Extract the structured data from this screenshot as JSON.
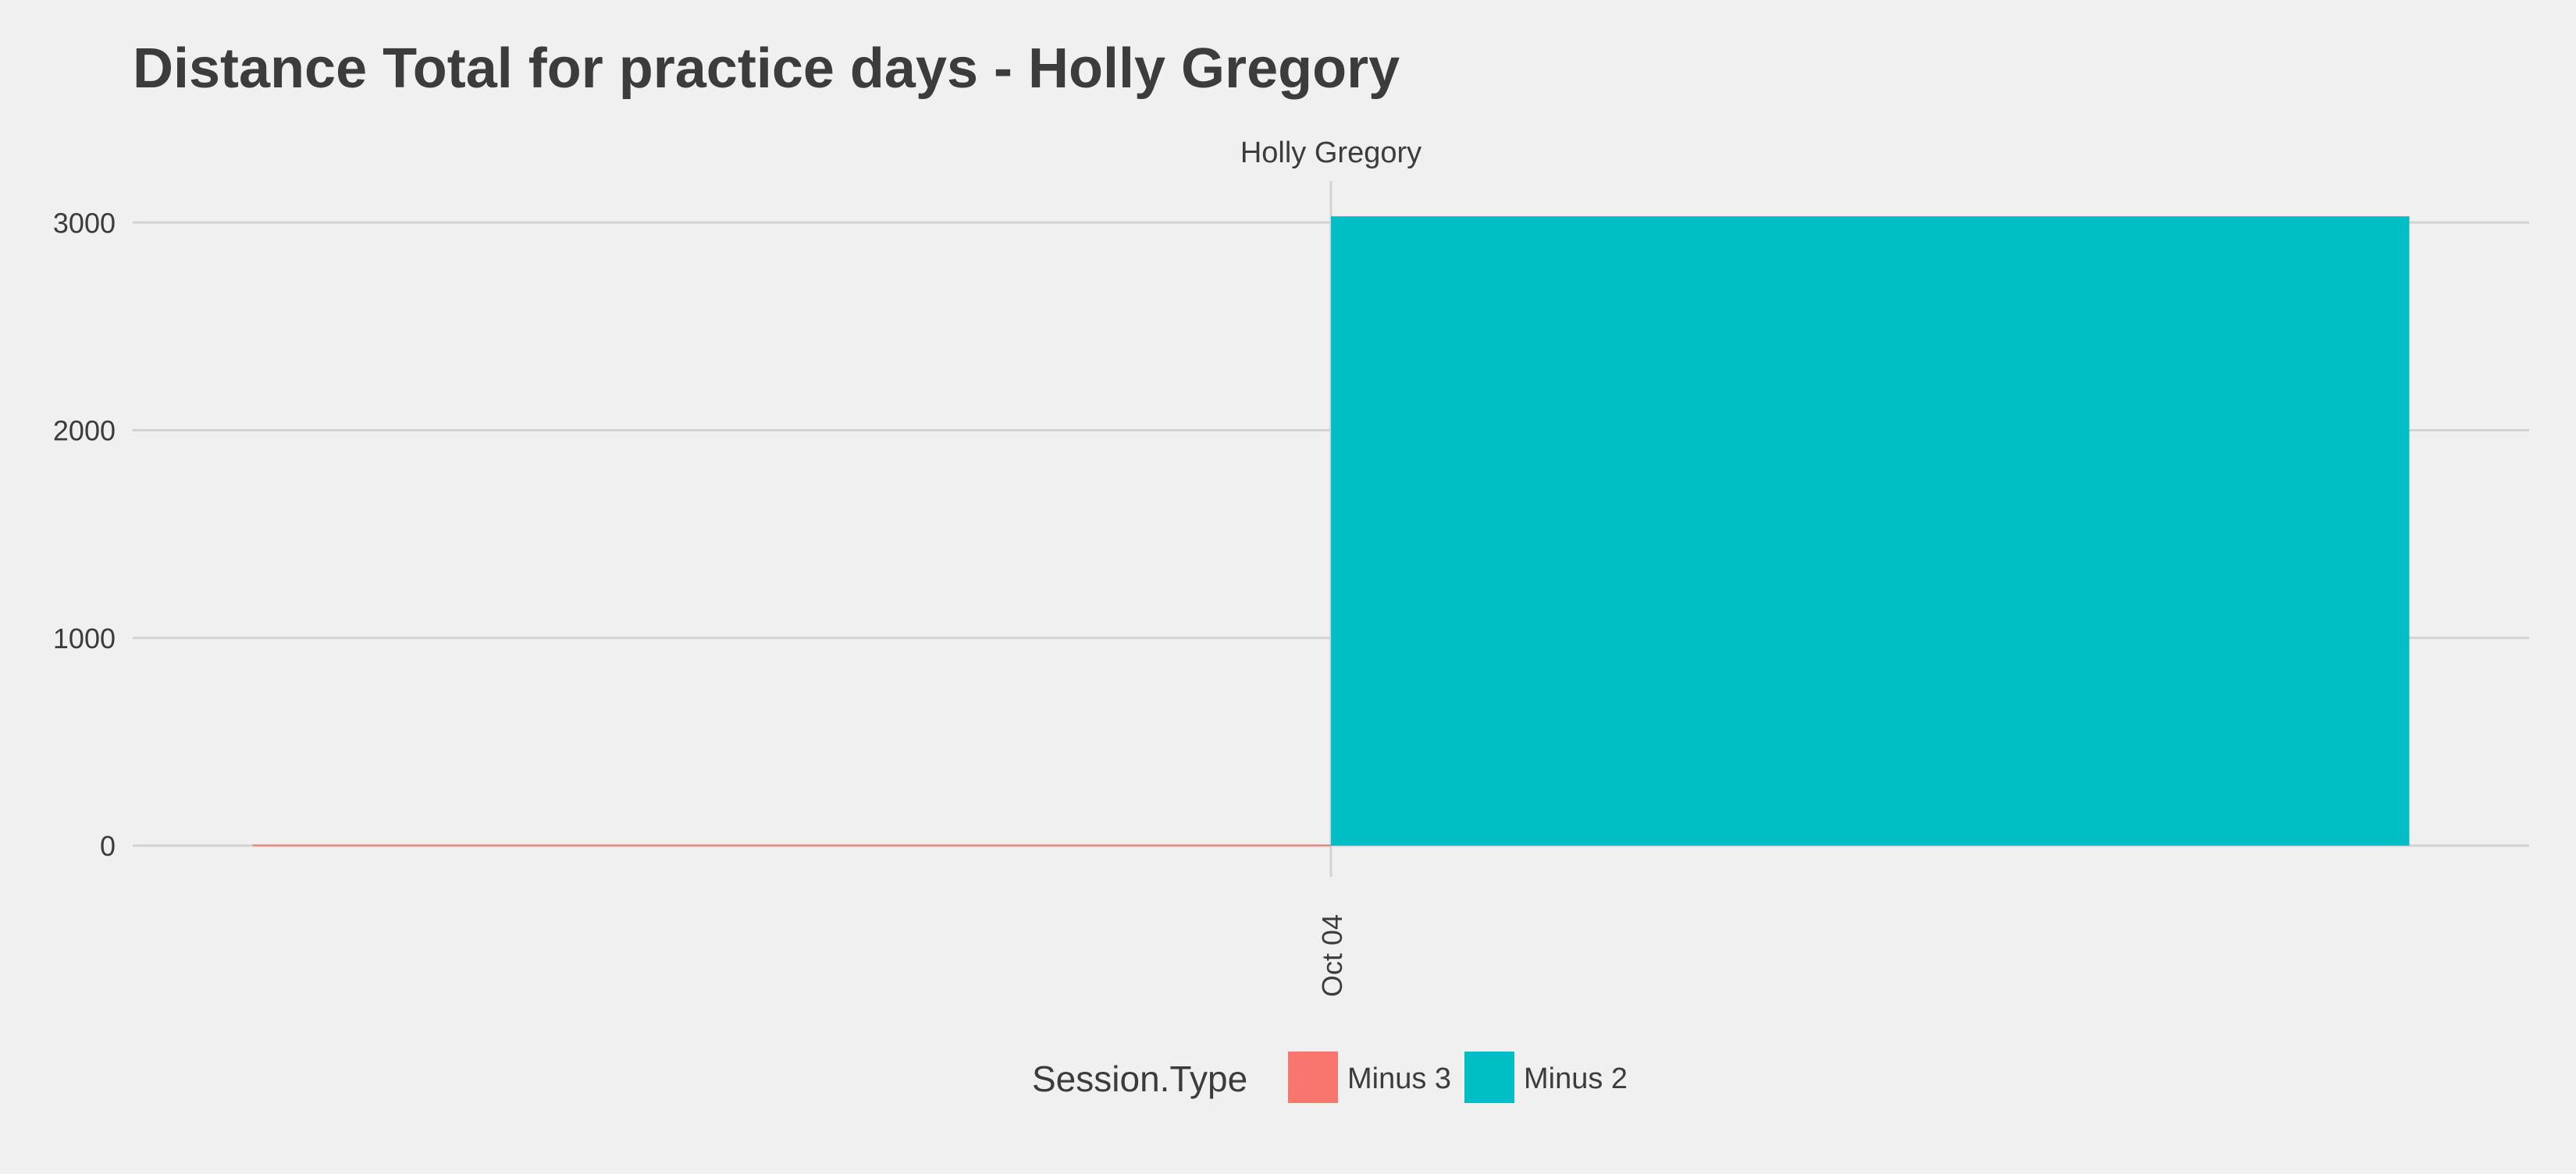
{
  "chart_data": {
    "type": "bar",
    "title": "Distance Total for practice days -  Holly Gregory",
    "facet_label": "Holly Gregory",
    "xlabel": "",
    "ylabel": "",
    "x_tick_labels": [
      "Oct 04"
    ],
    "y_ticks": [
      0,
      1000,
      2000,
      3000
    ],
    "ylim": [
      -150,
      3200
    ],
    "grid": true,
    "legend": {
      "title": "Session.Type",
      "placement": "bottom",
      "entries": [
        {
          "name": "Minus 3",
          "color": "#f8766d"
        },
        {
          "name": "Minus 2",
          "color": "#00bfc4"
        }
      ]
    },
    "categories": [
      "Oct 04"
    ],
    "series": [
      {
        "name": "Minus 3",
        "color": "#f8766d",
        "values": [
          5
        ]
      },
      {
        "name": "Minus 2",
        "color": "#00bfc4",
        "values": [
          3030
        ]
      }
    ],
    "colors": {
      "background": "#f0f0f0",
      "gridline": "#d2d2d2",
      "text": "#3c3c3c"
    }
  }
}
